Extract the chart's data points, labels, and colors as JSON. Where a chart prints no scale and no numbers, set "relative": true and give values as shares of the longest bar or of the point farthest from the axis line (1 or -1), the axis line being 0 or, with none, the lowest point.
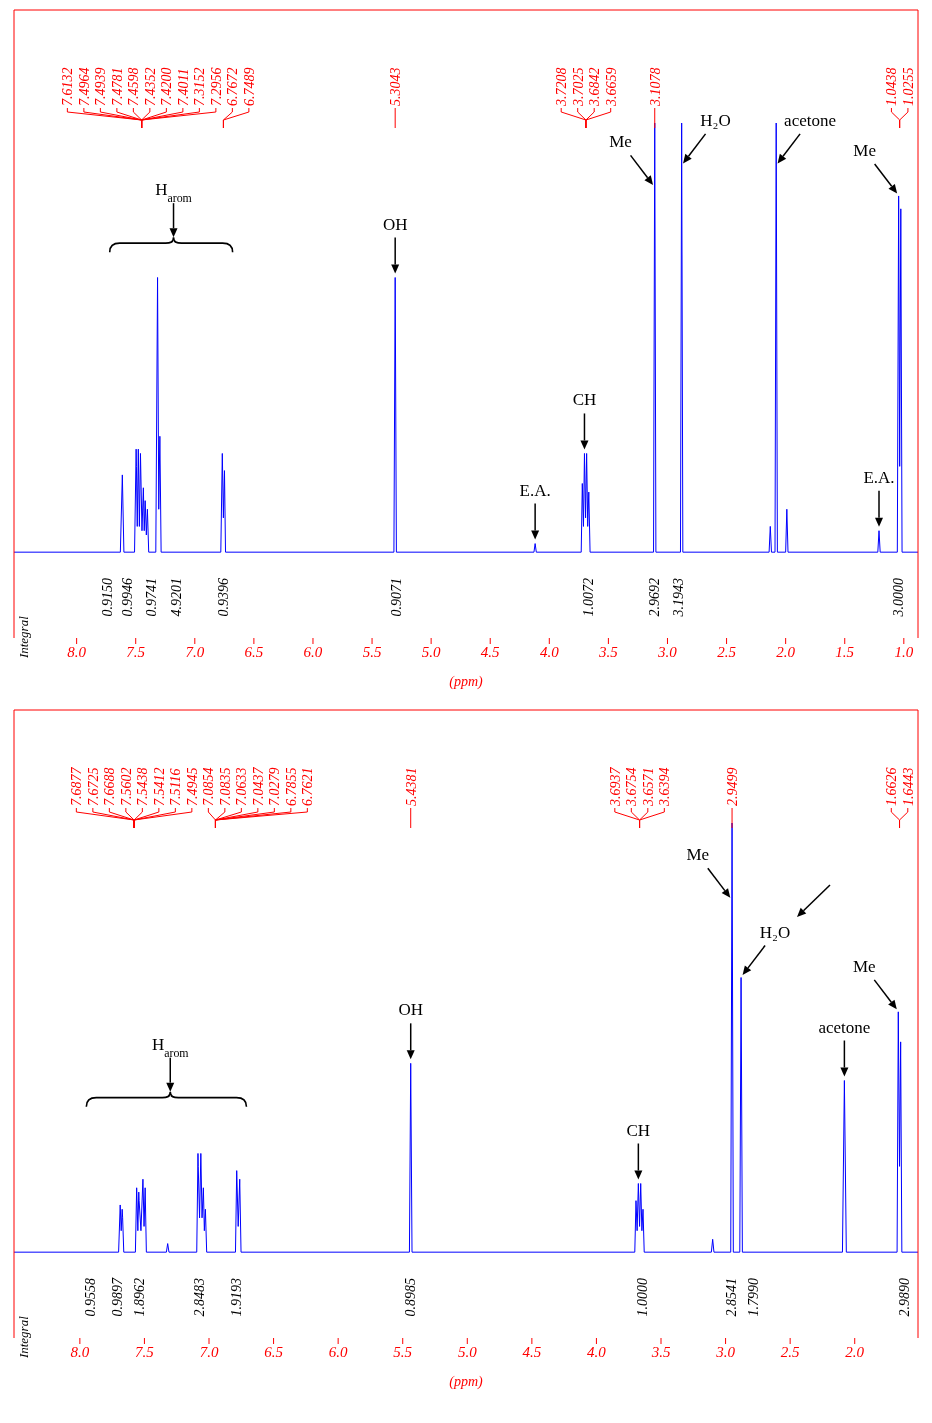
{
  "chart_data": [
    {
      "type": "line",
      "relative": true,
      "marker": "none",
      "xlabel": "(ppm)",
      "xlim": [
        8.53,
        0.88
      ],
      "xticks": [
        {
          "value": 8,
          "label": "8.0"
        },
        7.5,
        {
          "value": 7,
          "label": "7.0"
        },
        6.5,
        {
          "value": 6,
          "label": "6.0"
        },
        5.5,
        {
          "value": 5,
          "label": "5.0"
        },
        4.5,
        {
          "value": 4,
          "label": "4.0"
        },
        3.5,
        {
          "value": 3,
          "label": "3.0"
        },
        2.5,
        {
          "value": 2,
          "label": "2.0"
        },
        1.5,
        {
          "value": 1,
          "label": "1.0"
        }
      ],
      "x": [
        8.53,
        7.63,
        7.6132,
        7.6,
        7.51,
        7.4964,
        7.4939,
        7.487,
        7.4781,
        7.469,
        7.4598,
        7.447,
        7.4352,
        7.428,
        7.42,
        7.41,
        7.4011,
        7.39,
        7.33,
        7.3152,
        7.305,
        7.2956,
        7.285,
        6.78,
        6.7672,
        6.758,
        6.7489,
        6.74,
        5.315,
        5.3043,
        5.294,
        4.13,
        4.12,
        4.11,
        3.73,
        3.7208,
        3.711,
        3.7025,
        3.693,
        3.6842,
        3.675,
        3.6659,
        3.655,
        3.118,
        3.1078,
        3.098,
        2.89,
        2.88,
        2.87,
        2.14,
        2.13,
        2.12,
        2.09,
        2.08,
        2.07,
        2.0,
        1.99,
        1.98,
        1.22,
        1.21,
        1.2,
        1.055,
        1.0438,
        1.035,
        1.0255,
        1.015,
        0.88
      ],
      "series": [
        {
          "color": "#0000ff",
          "values": [
            0,
            0,
            0.18,
            0,
            0,
            0.24,
            0.2,
            0.06,
            0.24,
            0.06,
            0.23,
            0.05,
            0.15,
            0.05,
            0.12,
            0.04,
            0.1,
            0,
            0,
            0.64,
            0.1,
            0.27,
            0,
            0,
            0.23,
            0.08,
            0.19,
            0,
            0,
            0.64,
            0,
            0,
            0.02,
            0,
            0,
            0.16,
            0.06,
            0.23,
            0.08,
            0.23,
            0.06,
            0.14,
            0,
            0,
            1,
            0,
            0,
            1,
            0,
            0,
            0.06,
            0,
            0,
            1,
            0,
            0,
            0.1,
            0,
            0,
            0.05,
            0,
            0,
            0.83,
            0.2,
            0.8,
            0,
            0
          ]
        }
      ],
      "annotations": [
        "7.6132",
        "7.4964",
        "7.4939",
        "7.4781",
        "7.4598",
        "7.4352",
        "7.4200",
        "7.4011",
        "7.3152",
        "7.2956",
        "6.7672",
        "6.7489",
        "5.3043",
        "3.7208",
        "3.7025",
        "3.6842",
        "3.6659",
        "3.1078",
        "1.0438",
        "1.0255",
        "H$_{arom}$",
        "Integral",
        "0.9150",
        "0.9946",
        "0.9741",
        "4.9201",
        "0.9396",
        "0.9071",
        "1.0072",
        "2.9692",
        "3.1943",
        "3.0000",
        {
          "text": "OH",
          "x": 5.3043,
          "y": 0.64
        },
        {
          "text": "E.A.",
          "x": 4.12,
          "y": 0.02
        },
        {
          "text": "CH",
          "x": 3.7025,
          "y": 0.23
        },
        {
          "text": "Me",
          "x": 3.1093,
          "y": 0.85
        },
        {
          "text": "H₂O",
          "x": 2.881,
          "y": 0.9
        },
        {
          "text": "acetone",
          "x": 2.081,
          "y": 0.9
        },
        {
          "text": "E.A.",
          "x": 1.21,
          "y": 0.05
        },
        {
          "text": "Me",
          "x": 1.0438,
          "y": 0.83
        }
      ]
    },
    {
      "type": "line",
      "relative": true,
      "marker": "none",
      "xlabel": "(ppm)",
      "xlim": [
        8.51,
        1.51
      ],
      "xticks": [
        {
          "value": 8,
          "label": "8.0"
        },
        7.5,
        {
          "value": 7,
          "label": "7.0"
        },
        6.5,
        {
          "value": 6,
          "label": "6.0"
        },
        5.5,
        {
          "value": 5,
          "label": "5.0"
        },
        4.5,
        {
          "value": 4,
          "label": "4.0"
        },
        3.5,
        {
          "value": 3,
          "label": "3.0"
        },
        2.5,
        {
          "value": 2,
          "label": "2.0"
        }
      ],
      "x": [
        8.51,
        7.7,
        7.6877,
        7.68,
        7.6725,
        7.6688,
        7.66,
        7.57,
        7.5602,
        7.551,
        7.5438,
        7.5412,
        7.527,
        7.5116,
        7.503,
        7.4945,
        7.485,
        7.33,
        7.32,
        7.31,
        7.095,
        7.0854,
        7.0835,
        7.073,
        7.0633,
        7.054,
        7.0437,
        7.036,
        7.0279,
        7.018,
        6.795,
        6.7855,
        6.774,
        6.7621,
        6.752,
        5.448,
        5.4381,
        5.428,
        3.703,
        3.6937,
        3.685,
        3.6754,
        3.666,
        3.6571,
        3.648,
        3.6394,
        3.63,
        3.11,
        3.1,
        3.09,
        2.96,
        2.9499,
        2.94,
        2.89,
        2.88,
        2.87,
        2.095,
        2.08,
        2.065,
        1.672,
        1.6626,
        1.653,
        1.6443,
        1.635,
        1.51
      ],
      "series": [
        {
          "color": "#0000ff",
          "values": [
            0,
            0,
            0.11,
            0.05,
            0.1,
            0.08,
            0,
            0,
            0.15,
            0.05,
            0.14,
            0.12,
            0.05,
            0.17,
            0.06,
            0.15,
            0,
            0,
            0.02,
            0,
            0,
            0.23,
            0.2,
            0.08,
            0.23,
            0.08,
            0.15,
            0.05,
            0.1,
            0,
            0,
            0.19,
            0.06,
            0.17,
            0,
            0,
            0.44,
            0,
            0,
            0.12,
            0.05,
            0.16,
            0.06,
            0.16,
            0.05,
            0.1,
            0,
            0,
            0.03,
            0,
            0,
            1,
            0,
            0,
            0.64,
            0,
            0,
            0.4,
            0,
            0,
            0.56,
            0.2,
            0.49,
            0,
            0
          ]
        }
      ],
      "annotations": [
        "7.6877",
        "7.6725",
        "7.6688",
        "7.5602",
        "7.5438",
        "7.5412",
        "7.5116",
        "7.4945",
        "7.0854",
        "7.0835",
        "7.0633",
        "7.0437",
        "7.0279",
        "6.7855",
        "6.7621",
        "5.4381",
        "3.6937",
        "3.6754",
        "3.6571",
        "3.6394",
        "2.9499",
        "1.6626",
        "1.6443",
        "H$_{arom}$",
        "Integral",
        "0.9558",
        "0.9897",
        "1.8962",
        "2.8483",
        "1.9193",
        "0.8985",
        "1.0000",
        "2.8541",
        "1.7990",
        "2.9890",
        {
          "text": "OH",
          "x": 5.4381,
          "y": 0.44
        },
        {
          "text": "CH",
          "x": 3.6754,
          "y": 0.16
        },
        {
          "text": "Me",
          "x": 2.9517,
          "y": 0.82
        },
        {
          "text": "H₂O",
          "x": 2.88,
          "y": 0.64
        },
        {
          "text": "acetone",
          "x": 2.08,
          "y": 0.4
        },
        {
          "text": "Me",
          "x": 1.6626,
          "y": 0.56
        }
      ]
    }
  ]
}
